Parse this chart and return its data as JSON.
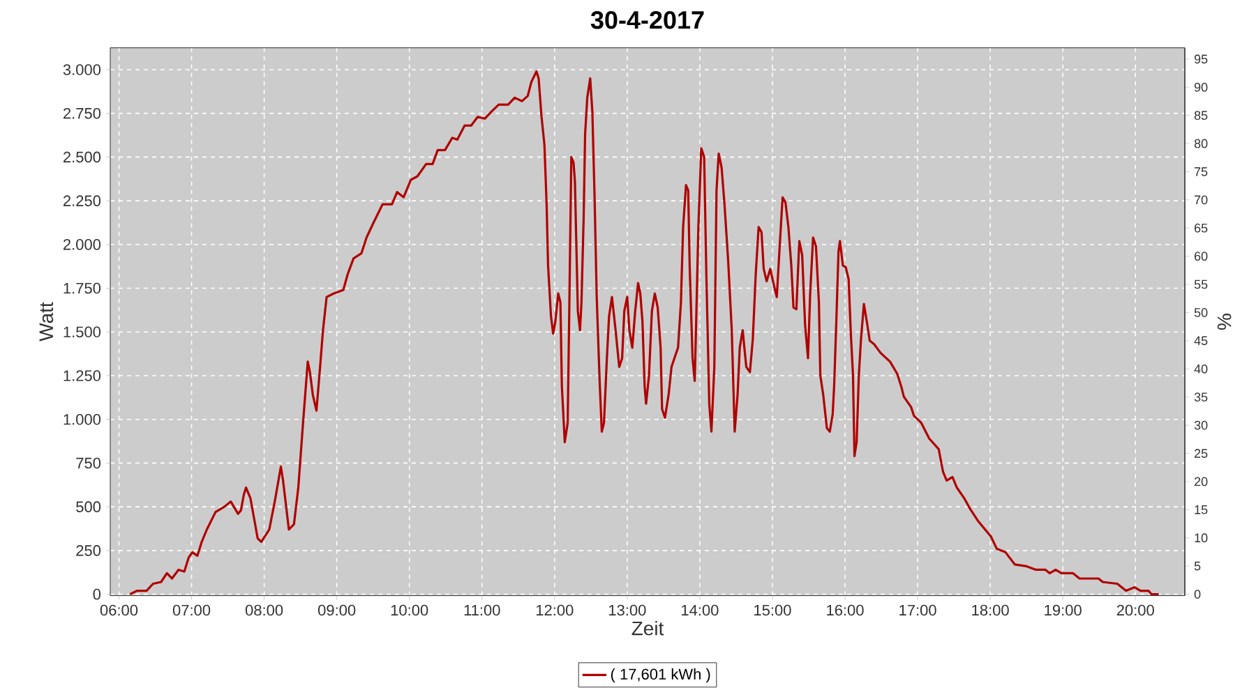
{
  "chart_data": {
    "type": "line",
    "title": "30-4-2017",
    "xlabel": "Zeit",
    "ylabel": "Watt",
    "y2label": "%",
    "grid": true,
    "legend": "bottom",
    "xlim": [
      5.88,
      20.68
    ],
    "ylim": [
      -8,
      3125
    ],
    "y2lim": [
      -0.25,
      97
    ],
    "xticks": [
      {
        "value": 6,
        "label": "06:00"
      },
      {
        "value": 7,
        "label": "07:00"
      },
      {
        "value": 8,
        "label": "08:00"
      },
      {
        "value": 9,
        "label": "09:00"
      },
      {
        "value": 10,
        "label": "10:00"
      },
      {
        "value": 11,
        "label": "11:00"
      },
      {
        "value": 12,
        "label": "12:00"
      },
      {
        "value": 13,
        "label": "13:00"
      },
      {
        "value": 14,
        "label": "14:00"
      },
      {
        "value": 15,
        "label": "15:00"
      },
      {
        "value": 16,
        "label": "16:00"
      },
      {
        "value": 17,
        "label": "17:00"
      },
      {
        "value": 18,
        "label": "18:00"
      },
      {
        "value": 19,
        "label": "19:00"
      },
      {
        "value": 20,
        "label": "20:00"
      }
    ],
    "yticks": [
      0,
      250,
      500,
      750,
      {
        "value": 1000,
        "label": "1.000"
      },
      {
        "value": 1250,
        "label": "1.250"
      },
      {
        "value": 1500,
        "label": "1.500"
      },
      {
        "value": 1750,
        "label": "1.750"
      },
      {
        "value": 2000,
        "label": "2.000"
      },
      {
        "value": 2250,
        "label": "2.250"
      },
      {
        "value": 2500,
        "label": "2.500"
      },
      {
        "value": 2750,
        "label": "2.750"
      },
      {
        "value": 3000,
        "label": "3.000"
      }
    ],
    "y2ticks": [
      0,
      5,
      10,
      15,
      20,
      25,
      30,
      35,
      40,
      45,
      50,
      55,
      60,
      65,
      70,
      75,
      80,
      85,
      90,
      95
    ],
    "series": [
      {
        "name": "( 17,601 kWh )",
        "color": "#b00000",
        "x": [
          6.15,
          6.25,
          6.38,
          6.47,
          6.58,
          6.66,
          6.73,
          6.82,
          6.9,
          6.96,
          7.01,
          7.08,
          7.14,
          7.21,
          7.33,
          7.45,
          7.54,
          7.64,
          7.68,
          7.72,
          7.75,
          7.81,
          7.91,
          7.96,
          8.07,
          8.15,
          8.23,
          8.26,
          8.34,
          8.41,
          8.47,
          8.53,
          8.6,
          8.63,
          8.67,
          8.72,
          8.77,
          8.81,
          8.86,
          8.96,
          9.09,
          9.15,
          9.23,
          9.34,
          9.41,
          9.5,
          9.63,
          9.76,
          9.83,
          9.92,
          10.02,
          10.11,
          10.23,
          10.32,
          10.39,
          10.49,
          10.59,
          10.66,
          10.76,
          10.85,
          10.94,
          11.04,
          11.13,
          11.23,
          11.36,
          11.45,
          11.55,
          11.63,
          11.68,
          11.75,
          11.78,
          11.82,
          11.86,
          11.89,
          11.91,
          11.95,
          11.98,
          12.01,
          12.05,
          12.08,
          12.1,
          12.14,
          12.18,
          12.2,
          12.23,
          12.26,
          12.28,
          12.32,
          12.35,
          12.37,
          12.4,
          12.42,
          12.45,
          12.49,
          12.52,
          12.55,
          12.58,
          12.62,
          12.65,
          12.68,
          12.72,
          12.75,
          12.79,
          12.84,
          12.89,
          12.93,
          12.96,
          13.0,
          13.03,
          13.07,
          13.11,
          13.15,
          13.18,
          13.21,
          13.24,
          13.26,
          13.3,
          13.34,
          13.38,
          13.42,
          13.46,
          13.48,
          13.52,
          13.57,
          13.61,
          13.65,
          13.7,
          13.74,
          13.77,
          13.81,
          13.84,
          13.86,
          13.9,
          13.93,
          13.95,
          13.98,
          14.02,
          14.06,
          14.09,
          14.13,
          14.16,
          14.2,
          14.23,
          14.26,
          14.3,
          14.34,
          14.39,
          14.44,
          14.48,
          14.52,
          14.55,
          14.59,
          14.64,
          14.69,
          14.73,
          14.77,
          14.81,
          14.85,
          14.88,
          14.92,
          14.97,
          15.03,
          15.06,
          15.1,
          15.14,
          15.18,
          15.22,
          15.26,
          15.29,
          15.33,
          15.37,
          15.41,
          15.45,
          15.49,
          15.52,
          15.56,
          15.6,
          15.64,
          15.66,
          15.7,
          15.75,
          15.79,
          15.83,
          15.85,
          15.88,
          15.91,
          15.93,
          15.97,
          16.01,
          16.05,
          16.08,
          16.11,
          16.13,
          16.16,
          16.19,
          16.22,
          16.26,
          16.3,
          16.34,
          16.4,
          16.49,
          16.62,
          16.72,
          16.78,
          16.81,
          16.91,
          16.95,
          17.05,
          17.16,
          17.29,
          17.35,
          17.4,
          17.48,
          17.54,
          17.64,
          17.72,
          17.83,
          17.93,
          18.01,
          18.09,
          18.21,
          18.34,
          18.5,
          18.63,
          18.76,
          18.82,
          18.9,
          18.98,
          19.14,
          19.23,
          19.49,
          19.55,
          19.75,
          19.87,
          19.99,
          20.07,
          20.18,
          20.22,
          20.32
        ],
        "values": [
          0,
          20,
          20,
          60,
          70,
          120,
          90,
          140,
          130,
          210,
          240,
          220,
          300,
          370,
          470,
          500,
          530,
          460,
          480,
          570,
          610,
          550,
          320,
          300,
          370,
          540,
          730,
          650,
          370,
          400,
          610,
          950,
          1330,
          1270,
          1140,
          1050,
          1300,
          1510,
          1700,
          1720,
          1740,
          1830,
          1920,
          1950,
          2040,
          2120,
          2230,
          2230,
          2300,
          2270,
          2370,
          2390,
          2460,
          2460,
          2540,
          2540,
          2610,
          2600,
          2680,
          2680,
          2730,
          2720,
          2760,
          2800,
          2800,
          2840,
          2820,
          2850,
          2930,
          2990,
          2950,
          2730,
          2570,
          2230,
          1880,
          1590,
          1490,
          1560,
          1720,
          1670,
          1190,
          870,
          980,
          1560,
          2500,
          2470,
          2360,
          1620,
          1510,
          1670,
          2150,
          2630,
          2840,
          2950,
          2760,
          2280,
          1700,
          1220,
          930,
          980,
          1350,
          1590,
          1700,
          1510,
          1300,
          1350,
          1620,
          1700,
          1510,
          1410,
          1620,
          1780,
          1720,
          1560,
          1190,
          1090,
          1250,
          1620,
          1720,
          1640,
          1410,
          1060,
          1010,
          1140,
          1300,
          1350,
          1410,
          1670,
          2100,
          2340,
          2310,
          1880,
          1350,
          1220,
          1560,
          2100,
          2550,
          2500,
          1830,
          1090,
          930,
          1300,
          2310,
          2520,
          2440,
          2230,
          1910,
          1510,
          930,
          1140,
          1410,
          1510,
          1300,
          1270,
          1460,
          1830,
          2100,
          2070,
          1860,
          1790,
          1860,
          1750,
          1700,
          1990,
          2270,
          2240,
          2100,
          1880,
          1640,
          1630,
          2020,
          1940,
          1540,
          1350,
          1720,
          2040,
          1990,
          1670,
          1250,
          1140,
          950,
          930,
          1030,
          1190,
          1560,
          1960,
          2020,
          1880,
          1870,
          1800,
          1490,
          1250,
          790,
          870,
          1250,
          1460,
          1660,
          1560,
          1450,
          1430,
          1380,
          1330,
          1260,
          1180,
          1130,
          1070,
          1020,
          980,
          890,
          830,
          700,
          650,
          670,
          610,
          550,
          490,
          420,
          370,
          330,
          260,
          240,
          170,
          160,
          140,
          140,
          120,
          140,
          120,
          120,
          90,
          90,
          70,
          60,
          20,
          40,
          20,
          20,
          0,
          0
        ]
      }
    ]
  }
}
